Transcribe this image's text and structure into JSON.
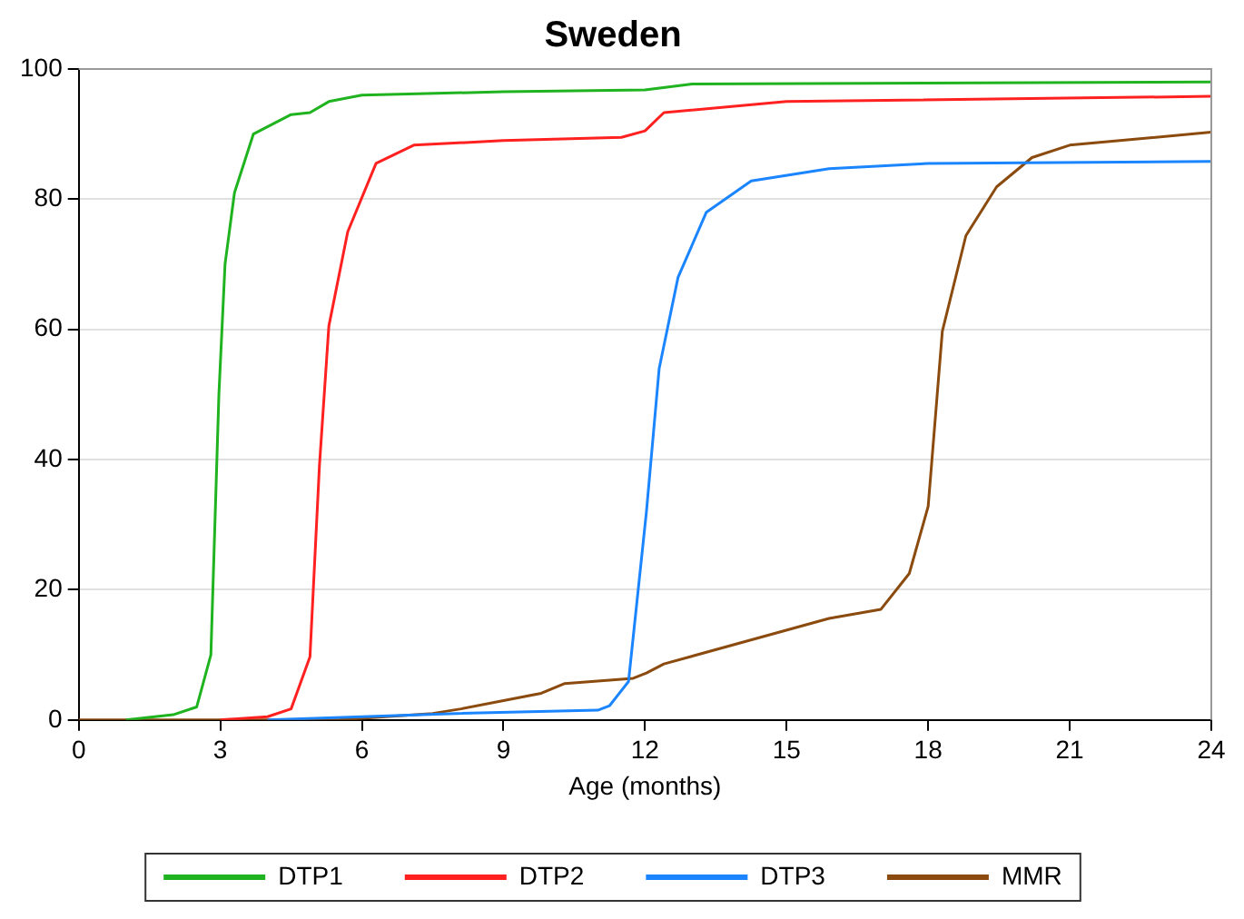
{
  "chart_data": {
    "type": "line",
    "title": "Sweden",
    "xlabel": "Age (months)",
    "xlim": [
      0,
      24
    ],
    "xticks": [
      0,
      3,
      6,
      9,
      12,
      15,
      18,
      21,
      24
    ],
    "ylim": [
      0,
      100
    ],
    "yticks": [
      0,
      20,
      40,
      60,
      80,
      100
    ],
    "grid": "y",
    "legend": "bottom",
    "marker": "none",
    "line_style": "solid",
    "series": [
      {
        "name": "DTP1",
        "color": "#1fb31f",
        "x": [
          1,
          2,
          2.5,
          2.8,
          2.97,
          3.1,
          3.3,
          3.7,
          4.5,
          4.9,
          5.3,
          6,
          9,
          12,
          13,
          24
        ],
        "values": [
          0,
          0.8,
          2,
          10,
          50,
          70,
          81,
          90,
          93,
          93.3,
          95,
          96,
          96.5,
          96.8,
          97.7,
          98
        ]
      },
      {
        "name": "DTP2",
        "color": "#ff2020",
        "x": [
          3,
          4,
          4.5,
          4.9,
          5.1,
          5.3,
          5.7,
          6.3,
          7.1,
          9,
          11.5,
          12,
          12.4,
          15,
          24
        ],
        "values": [
          0,
          0.5,
          1.7,
          9.7,
          39,
          60.5,
          75,
          85.5,
          88.3,
          89,
          89.5,
          90.5,
          93.3,
          95,
          95.8
        ]
      },
      {
        "name": "DTP3",
        "color": "#1a85ff",
        "x": [
          4,
          6,
          8,
          11,
          11.25,
          11.65,
          12.03,
          12.3,
          12.7,
          13.3,
          14.25,
          15.9,
          18,
          24
        ],
        "values": [
          0,
          0.5,
          1,
          1.5,
          2.2,
          5.9,
          32,
          54,
          68,
          78,
          82.8,
          84.7,
          85.5,
          85.8
        ]
      },
      {
        "name": "MMR",
        "color": "#8b4a0e",
        "x": [
          0,
          5.5,
          7.5,
          8.1,
          9.8,
          10.3,
          11.75,
          12.03,
          12.4,
          15.9,
          17,
          17.6,
          18,
          18.3,
          18.8,
          19.45,
          20.2,
          21,
          24
        ],
        "values": [
          0,
          0,
          1,
          1.7,
          4.1,
          5.6,
          6.4,
          7.2,
          8.6,
          15.6,
          17,
          22.5,
          32.8,
          59.7,
          74.4,
          81.9,
          86.4,
          88.3,
          90.3
        ]
      }
    ]
  }
}
